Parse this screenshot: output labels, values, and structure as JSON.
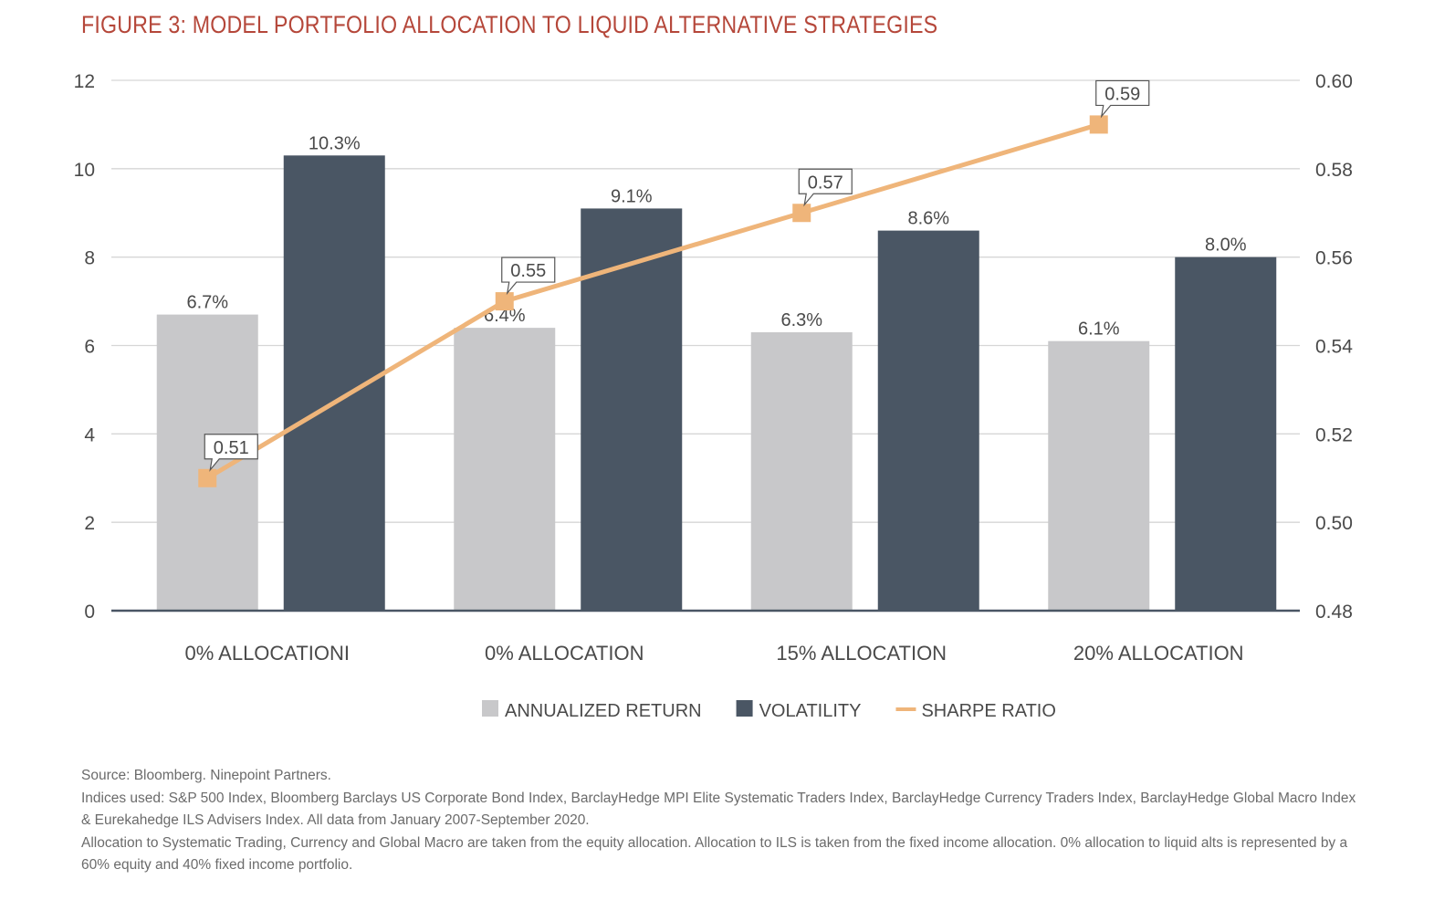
{
  "title": "FIGURE 3: MODEL PORTFOLIO ALLOCATION TO LIQUID ALTERNATIVE STRATEGIES",
  "chart_data": {
    "type": "bar",
    "categories": [
      "0% ALLOCATIONI",
      "0% ALLOCATION",
      "15% ALLOCATION",
      "20% ALLOCATION"
    ],
    "series": [
      {
        "name": "ANNUALIZED RETURN",
        "type": "bar",
        "axis": "left",
        "values": [
          6.7,
          6.4,
          6.3,
          6.1
        ],
        "labels": [
          "6.7%",
          "6.4%",
          "6.3%",
          "6.1%"
        ],
        "color": "#c8c8ca"
      },
      {
        "name": "VOLATILITY",
        "type": "bar",
        "axis": "left",
        "values": [
          10.3,
          9.1,
          8.6,
          8.0
        ],
        "labels": [
          "10.3%",
          "9.1%",
          "8.6%",
          "8.0%"
        ],
        "color": "#4a5664"
      },
      {
        "name": "SHARPE RATIO",
        "type": "line",
        "axis": "right",
        "values": [
          0.51,
          0.55,
          0.57,
          0.59
        ],
        "labels": [
          "0.51",
          "0.55",
          "0.57",
          "0.59"
        ],
        "color": "#efb57a"
      }
    ],
    "y_left": {
      "ylim": [
        0,
        12
      ],
      "ticks": [
        "0",
        "2",
        "4",
        "6",
        "8",
        "10",
        "12"
      ]
    },
    "y_right": {
      "ylim": [
        0.48,
        0.6
      ],
      "ticks": [
        "0.48",
        "0.50",
        "0.52",
        "0.54",
        "0.56",
        "0.58",
        "0.60"
      ]
    },
    "grid": true,
    "legend": "bottom-center"
  },
  "notes": {
    "source": "Source: Bloomberg. Ninepoint Partners.",
    "indices": "Indices used: S&P 500 Index, Bloomberg Barclays US Corporate Bond Index, BarclayHedge MPI Elite Systematic Traders Index, BarclayHedge Currency Traders Index, BarclayHedge Global Macro Index & Eurekahedge ILS Advisers Index. All data from January 2007-September 2020.",
    "allocation": "Allocation to Systematic Trading, Currency and Global Macro are taken from the equity allocation. Allocation to ILS is taken from the fixed income allocation. 0% allocation to liquid alts is represented by a 60% equity and 40% fixed income portfolio."
  }
}
